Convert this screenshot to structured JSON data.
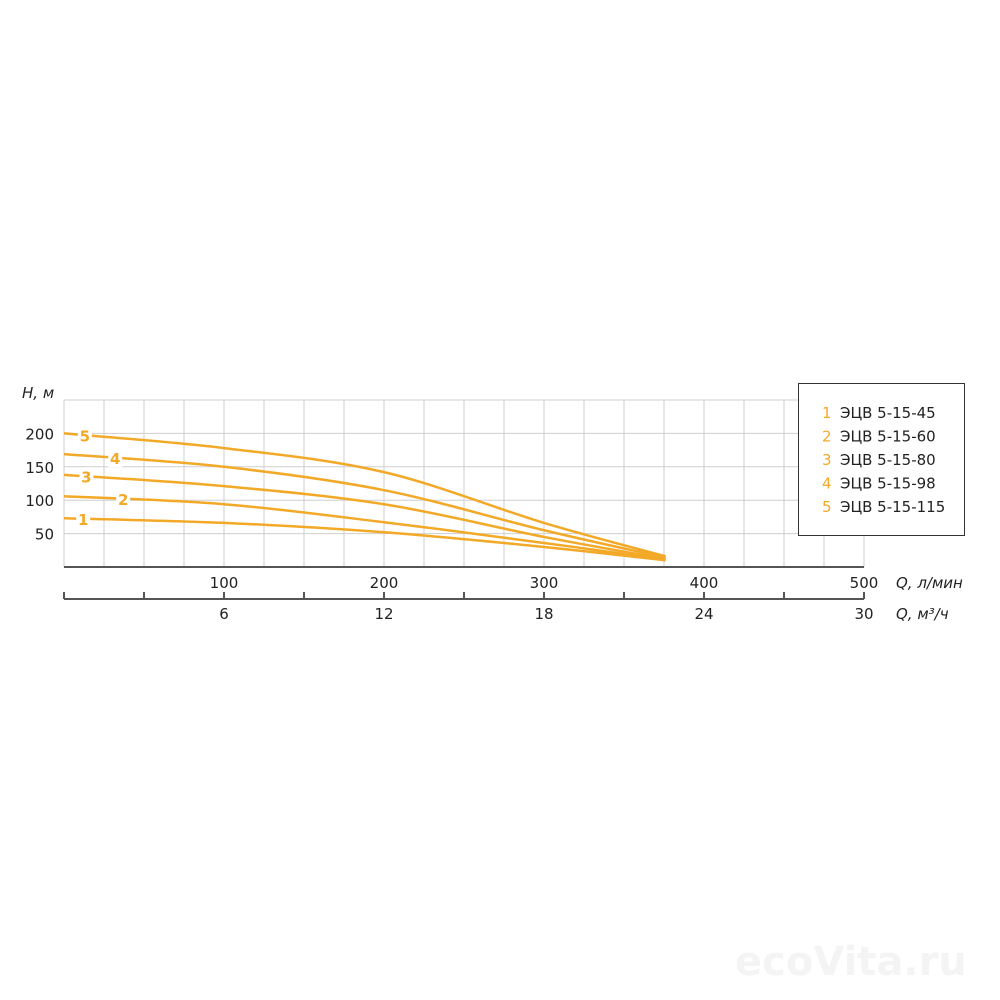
{
  "chart_data": {
    "type": "line",
    "ylabel": "H, м",
    "xlabel": "Q, л/мин",
    "xlabel_secondary": "Q, м³/ч",
    "xlim": [
      0,
      500
    ],
    "ylim": [
      0,
      250
    ],
    "x_ticks": [
      100,
      200,
      300,
      400,
      500
    ],
    "x_secondary_ticks": [
      6,
      12,
      18,
      24,
      30
    ],
    "y_ticks": [
      50,
      100,
      150,
      200
    ],
    "grid": true,
    "legend_placement": "top-right",
    "series_color": "#f3a928",
    "series": [
      {
        "label": "1",
        "name": "ЭЦВ 5-15-45",
        "x": [
          0,
          100,
          200,
          300,
          376
        ],
        "y": [
          73,
          66,
          52,
          30,
          10
        ]
      },
      {
        "label": "2",
        "name": "ЭЦВ 5-15-60",
        "x": [
          0,
          100,
          200,
          300,
          376
        ],
        "y": [
          106,
          94,
          67,
          36,
          11
        ]
      },
      {
        "label": "3",
        "name": "ЭЦВ 5-15-80",
        "x": [
          0,
          100,
          200,
          300,
          376
        ],
        "y": [
          138,
          121,
          94,
          45,
          12
        ]
      },
      {
        "label": "4",
        "name": "ЭЦВ 5-15-98",
        "x": [
          0,
          100,
          200,
          300,
          376
        ],
        "y": [
          169,
          150,
          115,
          55,
          14
        ]
      },
      {
        "label": "5",
        "name": "ЭЦВ 5-15-115",
        "x": [
          0,
          100,
          200,
          300,
          376
        ],
        "y": [
          200,
          178,
          142,
          66,
          16
        ]
      }
    ]
  },
  "watermark": "ecoVita.ru"
}
